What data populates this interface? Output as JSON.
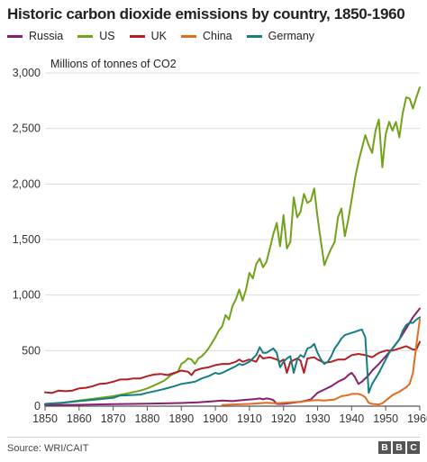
{
  "chart_data": {
    "type": "line",
    "title": "Historic carbon dioxide emissions by country, 1850-1960",
    "ylabel": "Millions of tonnes of CO2",
    "xlabel": "",
    "xlim": [
      1850,
      1960
    ],
    "ylim": [
      0,
      3000
    ],
    "grid": "horizontal",
    "legend_position": "top-left",
    "x_ticks": [
      1850,
      1860,
      1870,
      1880,
      1890,
      1900,
      1910,
      1920,
      1930,
      1940,
      1950,
      1960
    ],
    "y_ticks": [
      0,
      500,
      1000,
      1500,
      2000,
      2500,
      3000
    ],
    "y_tick_labels": [
      "0",
      "500",
      "1,000",
      "1,500",
      "2,000",
      "2,500",
      "3,000"
    ],
    "series": [
      {
        "name": "Russia",
        "color": "#8a1e6f",
        "points": [
          [
            1850,
            10
          ],
          [
            1860,
            12
          ],
          [
            1870,
            18
          ],
          [
            1880,
            22
          ],
          [
            1885,
            25
          ],
          [
            1890,
            28
          ],
          [
            1895,
            35
          ],
          [
            1900,
            45
          ],
          [
            1902,
            50
          ],
          [
            1905,
            45
          ],
          [
            1908,
            55
          ],
          [
            1910,
            60
          ],
          [
            1912,
            65
          ],
          [
            1913,
            70
          ],
          [
            1914,
            62
          ],
          [
            1915,
            70
          ],
          [
            1916,
            65
          ],
          [
            1917,
            55
          ],
          [
            1918,
            20
          ],
          [
            1920,
            20
          ],
          [
            1925,
            40
          ],
          [
            1928,
            60
          ],
          [
            1930,
            120
          ],
          [
            1932,
            150
          ],
          [
            1934,
            180
          ],
          [
            1936,
            220
          ],
          [
            1938,
            250
          ],
          [
            1939,
            280
          ],
          [
            1940,
            300
          ],
          [
            1941,
            260
          ],
          [
            1942,
            200
          ],
          [
            1943,
            220
          ],
          [
            1945,
            280
          ],
          [
            1946,
            320
          ],
          [
            1948,
            380
          ],
          [
            1950,
            450
          ],
          [
            1952,
            520
          ],
          [
            1954,
            600
          ],
          [
            1956,
            700
          ],
          [
            1958,
            800
          ],
          [
            1960,
            880
          ]
        ]
      },
      {
        "name": "US",
        "color": "#72a21a",
        "points": [
          [
            1850,
            20
          ],
          [
            1855,
            30
          ],
          [
            1860,
            50
          ],
          [
            1865,
            70
          ],
          [
            1870,
            90
          ],
          [
            1875,
            120
          ],
          [
            1878,
            140
          ],
          [
            1880,
            160
          ],
          [
            1883,
            200
          ],
          [
            1885,
            230
          ],
          [
            1887,
            280
          ],
          [
            1889,
            310
          ],
          [
            1890,
            380
          ],
          [
            1891,
            400
          ],
          [
            1892,
            430
          ],
          [
            1893,
            420
          ],
          [
            1894,
            380
          ],
          [
            1895,
            430
          ],
          [
            1896,
            450
          ],
          [
            1897,
            480
          ],
          [
            1898,
            520
          ],
          [
            1899,
            570
          ],
          [
            1900,
            620
          ],
          [
            1901,
            680
          ],
          [
            1902,
            720
          ],
          [
            1903,
            820
          ],
          [
            1904,
            780
          ],
          [
            1905,
            900
          ],
          [
            1906,
            960
          ],
          [
            1907,
            1050
          ],
          [
            1908,
            950
          ],
          [
            1909,
            1050
          ],
          [
            1910,
            1200
          ],
          [
            1911,
            1150
          ],
          [
            1912,
            1280
          ],
          [
            1913,
            1330
          ],
          [
            1914,
            1250
          ],
          [
            1915,
            1300
          ],
          [
            1916,
            1420
          ],
          [
            1917,
            1550
          ],
          [
            1918,
            1650
          ],
          [
            1919,
            1440
          ],
          [
            1920,
            1720
          ],
          [
            1921,
            1420
          ],
          [
            1922,
            1480
          ],
          [
            1923,
            1880
          ],
          [
            1924,
            1700
          ],
          [
            1925,
            1750
          ],
          [
            1926,
            1910
          ],
          [
            1927,
            1830
          ],
          [
            1928,
            1850
          ],
          [
            1929,
            1960
          ],
          [
            1930,
            1700
          ],
          [
            1931,
            1480
          ],
          [
            1932,
            1270
          ],
          [
            1933,
            1350
          ],
          [
            1934,
            1420
          ],
          [
            1935,
            1480
          ],
          [
            1936,
            1700
          ],
          [
            1937,
            1780
          ],
          [
            1938,
            1530
          ],
          [
            1939,
            1680
          ],
          [
            1940,
            1860
          ],
          [
            1941,
            2050
          ],
          [
            1942,
            2200
          ],
          [
            1943,
            2320
          ],
          [
            1944,
            2440
          ],
          [
            1945,
            2350
          ],
          [
            1946,
            2280
          ],
          [
            1947,
            2480
          ],
          [
            1948,
            2580
          ],
          [
            1949,
            2150
          ],
          [
            1950,
            2450
          ],
          [
            1951,
            2560
          ],
          [
            1952,
            2480
          ],
          [
            1953,
            2560
          ],
          [
            1954,
            2420
          ],
          [
            1955,
            2640
          ],
          [
            1956,
            2780
          ],
          [
            1957,
            2770
          ],
          [
            1958,
            2680
          ],
          [
            1959,
            2780
          ],
          [
            1960,
            2870
          ]
        ]
      },
      {
        "name": "UK",
        "color": "#b41f24",
        "points": [
          [
            1850,
            125
          ],
          [
            1852,
            118
          ],
          [
            1854,
            140
          ],
          [
            1856,
            135
          ],
          [
            1858,
            140
          ],
          [
            1860,
            160
          ],
          [
            1862,
            165
          ],
          [
            1864,
            180
          ],
          [
            1866,
            200
          ],
          [
            1868,
            205
          ],
          [
            1870,
            220
          ],
          [
            1872,
            240
          ],
          [
            1874,
            240
          ],
          [
            1876,
            250
          ],
          [
            1878,
            250
          ],
          [
            1880,
            270
          ],
          [
            1882,
            285
          ],
          [
            1884,
            290
          ],
          [
            1886,
            280
          ],
          [
            1888,
            300
          ],
          [
            1890,
            320
          ],
          [
            1892,
            310
          ],
          [
            1893,
            280
          ],
          [
            1894,
            320
          ],
          [
            1896,
            340
          ],
          [
            1898,
            350
          ],
          [
            1900,
            370
          ],
          [
            1902,
            380
          ],
          [
            1904,
            380
          ],
          [
            1906,
            400
          ],
          [
            1907,
            420
          ],
          [
            1908,
            400
          ],
          [
            1910,
            420
          ],
          [
            1912,
            400
          ],
          [
            1913,
            460
          ],
          [
            1914,
            430
          ],
          [
            1916,
            440
          ],
          [
            1918,
            420
          ],
          [
            1919,
            400
          ],
          [
            1920,
            420
          ],
          [
            1921,
            300
          ],
          [
            1922,
            400
          ],
          [
            1924,
            430
          ],
          [
            1925,
            410
          ],
          [
            1926,
            300
          ],
          [
            1927,
            430
          ],
          [
            1929,
            440
          ],
          [
            1930,
            420
          ],
          [
            1932,
            390
          ],
          [
            1934,
            400
          ],
          [
            1936,
            420
          ],
          [
            1938,
            420
          ],
          [
            1940,
            460
          ],
          [
            1942,
            470
          ],
          [
            1944,
            460
          ],
          [
            1946,
            440
          ],
          [
            1948,
            480
          ],
          [
            1950,
            500
          ],
          [
            1952,
            500
          ],
          [
            1954,
            520
          ],
          [
            1956,
            540
          ],
          [
            1958,
            510
          ],
          [
            1959,
            510
          ],
          [
            1960,
            580
          ]
        ]
      },
      {
        "name": "China",
        "color": "#e06d20",
        "points": [
          [
            1902,
            10
          ],
          [
            1905,
            15
          ],
          [
            1910,
            20
          ],
          [
            1915,
            30
          ],
          [
            1918,
            25
          ],
          [
            1920,
            30
          ],
          [
            1922,
            35
          ],
          [
            1925,
            40
          ],
          [
            1928,
            50
          ],
          [
            1930,
            55
          ],
          [
            1932,
            50
          ],
          [
            1935,
            60
          ],
          [
            1937,
            90
          ],
          [
            1939,
            100
          ],
          [
            1940,
            110
          ],
          [
            1942,
            110
          ],
          [
            1943,
            100
          ],
          [
            1944,
            80
          ],
          [
            1945,
            30
          ],
          [
            1946,
            20
          ],
          [
            1948,
            15
          ],
          [
            1949,
            25
          ],
          [
            1950,
            50
          ],
          [
            1952,
            100
          ],
          [
            1954,
            130
          ],
          [
            1956,
            170
          ],
          [
            1957,
            200
          ],
          [
            1958,
            300
          ],
          [
            1959,
            550
          ],
          [
            1960,
            780
          ]
        ]
      },
      {
        "name": "Germany",
        "color": "#137f82",
        "points": [
          [
            1850,
            20
          ],
          [
            1855,
            30
          ],
          [
            1860,
            45
          ],
          [
            1865,
            60
          ],
          [
            1870,
            75
          ],
          [
            1872,
            95
          ],
          [
            1875,
            100
          ],
          [
            1878,
            105
          ],
          [
            1880,
            120
          ],
          [
            1883,
            140
          ],
          [
            1885,
            155
          ],
          [
            1888,
            180
          ],
          [
            1890,
            200
          ],
          [
            1892,
            210
          ],
          [
            1894,
            220
          ],
          [
            1896,
            250
          ],
          [
            1898,
            270
          ],
          [
            1900,
            300
          ],
          [
            1901,
            290
          ],
          [
            1902,
            300
          ],
          [
            1904,
            330
          ],
          [
            1906,
            360
          ],
          [
            1907,
            380
          ],
          [
            1908,
            370
          ],
          [
            1910,
            400
          ],
          [
            1911,
            430
          ],
          [
            1912,
            460
          ],
          [
            1913,
            530
          ],
          [
            1914,
            480
          ],
          [
            1915,
            480
          ],
          [
            1916,
            500
          ],
          [
            1917,
            520
          ],
          [
            1918,
            480
          ],
          [
            1919,
            350
          ],
          [
            1920,
            400
          ],
          [
            1921,
            430
          ],
          [
            1922,
            450
          ],
          [
            1923,
            300
          ],
          [
            1924,
            420
          ],
          [
            1925,
            460
          ],
          [
            1926,
            440
          ],
          [
            1927,
            520
          ],
          [
            1928,
            530
          ],
          [
            1929,
            560
          ],
          [
            1930,
            480
          ],
          [
            1931,
            420
          ],
          [
            1932,
            380
          ],
          [
            1933,
            400
          ],
          [
            1934,
            450
          ],
          [
            1935,
            520
          ],
          [
            1936,
            560
          ],
          [
            1937,
            610
          ],
          [
            1938,
            640
          ],
          [
            1939,
            650
          ],
          [
            1940,
            660
          ],
          [
            1941,
            670
          ],
          [
            1942,
            680
          ],
          [
            1943,
            690
          ],
          [
            1944,
            620
          ],
          [
            1945,
            120
          ],
          [
            1946,
            200
          ],
          [
            1947,
            250
          ],
          [
            1948,
            300
          ],
          [
            1949,
            360
          ],
          [
            1950,
            420
          ],
          [
            1951,
            480
          ],
          [
            1952,
            520
          ],
          [
            1953,
            560
          ],
          [
            1954,
            600
          ],
          [
            1955,
            680
          ],
          [
            1956,
            730
          ],
          [
            1957,
            750
          ],
          [
            1958,
            750
          ],
          [
            1959,
            780
          ],
          [
            1960,
            800
          ]
        ]
      }
    ]
  },
  "footer": {
    "source": "Source: WRI/CAIT",
    "logo_letters": [
      "B",
      "B",
      "C"
    ]
  }
}
